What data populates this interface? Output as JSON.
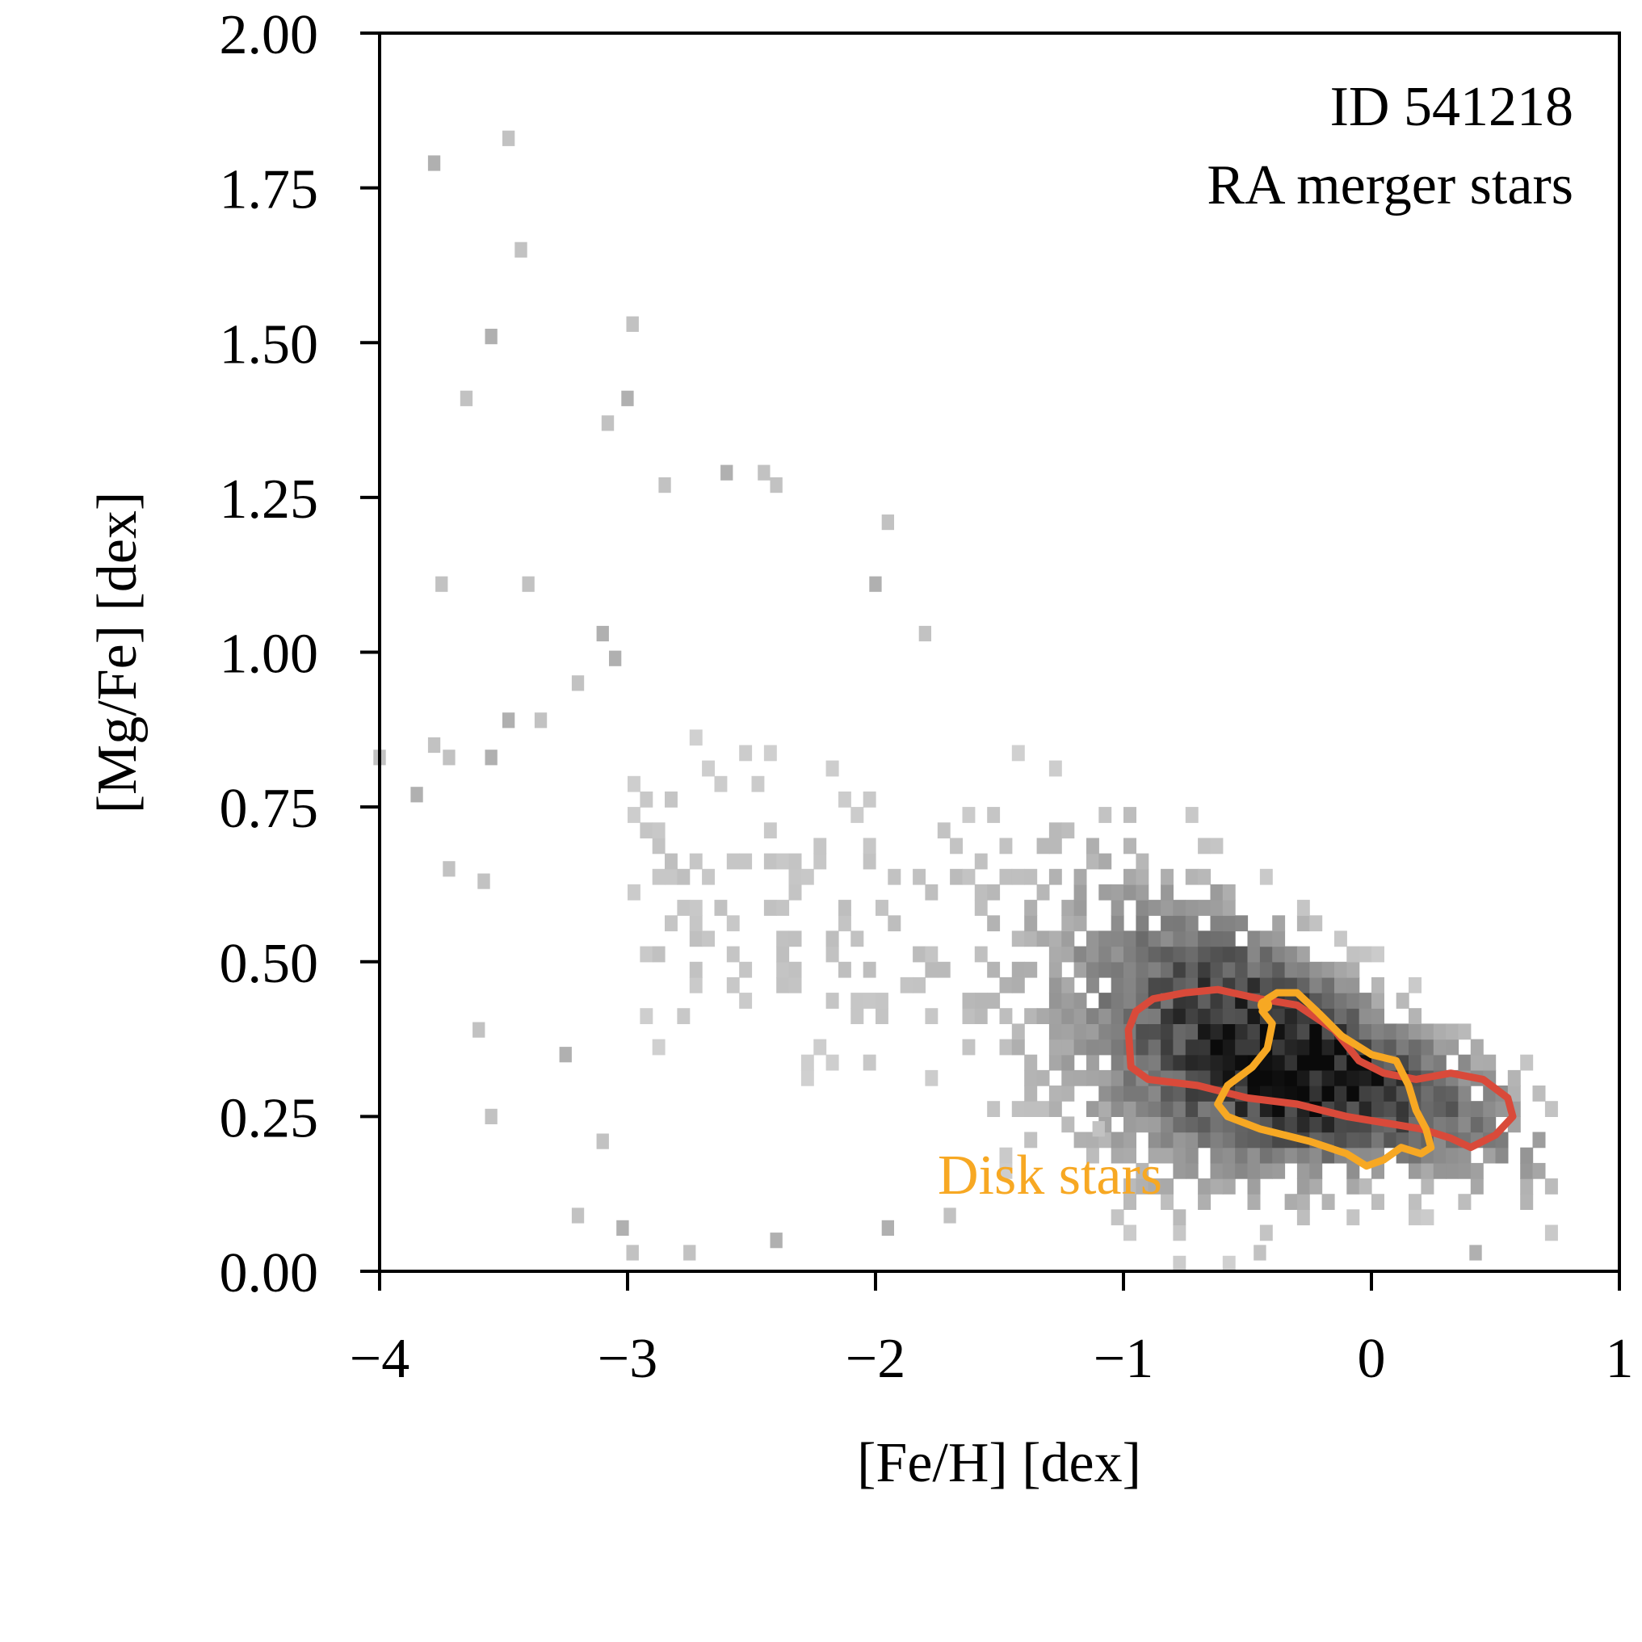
{
  "chart_data": {
    "type": "heatmap",
    "title": "",
    "xlabel": "[Fe/H] [dex]",
    "ylabel": "[Mg/Fe] [dex]",
    "xlim": [
      -4,
      1
    ],
    "ylim": [
      0,
      2
    ],
    "x_ticks": [
      -4,
      -3,
      -2,
      -1,
      0,
      1
    ],
    "x_tick_labels": [
      "−4",
      "−3",
      "−2",
      "−1",
      "0",
      "1"
    ],
    "y_ticks": [
      0,
      0.25,
      0.5,
      0.75,
      1.0,
      1.25,
      1.5,
      1.75,
      2.0
    ],
    "y_tick_labels": [
      "0.00",
      "0.25",
      "0.50",
      "0.75",
      "1.00",
      "1.25",
      "1.50",
      "1.75",
      "2.00"
    ],
    "grid": false,
    "annotations": [
      {
        "text": "ID 541218",
        "color": "#000000",
        "position": "top-right"
      },
      {
        "text": "RA merger stars",
        "color": "#000000",
        "position": "top-right"
      },
      {
        "text": "Disk stars",
        "color": "#f7a823",
        "position": "lower-middle"
      }
    ],
    "density_colormap": "greys",
    "density_ridge": [
      [
        -3.0,
        0.62
      ],
      [
        -2.5,
        0.58
      ],
      [
        -2.0,
        0.55
      ],
      [
        -1.5,
        0.5
      ],
      [
        -1.0,
        0.42
      ],
      [
        -0.5,
        0.36
      ],
      [
        0.0,
        0.3
      ],
      [
        0.5,
        0.24
      ],
      [
        0.8,
        0.15
      ]
    ],
    "sparse_points": [
      [
        -3.78,
        1.79
      ],
      [
        -3.48,
        1.83
      ],
      [
        -3.43,
        1.65
      ],
      [
        -3.55,
        1.51
      ],
      [
        -2.98,
        1.53
      ],
      [
        -3.65,
        1.41
      ],
      [
        -3.0,
        1.41
      ],
      [
        -3.08,
        1.37
      ],
      [
        -4.0,
        0.83
      ],
      [
        -3.85,
        0.77
      ],
      [
        -3.72,
        0.83
      ],
      [
        -3.78,
        0.85
      ],
      [
        -3.55,
        0.83
      ],
      [
        -3.72,
        0.65
      ],
      [
        -3.58,
        0.63
      ],
      [
        -3.48,
        0.89
      ],
      [
        -3.35,
        0.89
      ],
      [
        -3.2,
        0.95
      ],
      [
        -3.05,
        0.99
      ],
      [
        -3.75,
        1.11
      ],
      [
        -3.4,
        1.11
      ],
      [
        -3.1,
        1.03
      ],
      [
        -3.55,
        0.25
      ],
      [
        -3.6,
        0.39
      ],
      [
        -3.25,
        0.35
      ],
      [
        -3.1,
        0.21
      ],
      [
        -3.2,
        0.09
      ],
      [
        -3.02,
        0.07
      ],
      [
        -2.98,
        0.03
      ],
      [
        -2.75,
        0.03
      ],
      [
        -2.4,
        0.05
      ],
      [
        -1.95,
        1.21
      ],
      [
        -2.85,
        1.27
      ],
      [
        -2.6,
        1.29
      ],
      [
        -2.45,
        1.29
      ],
      [
        -2.4,
        1.27
      ],
      [
        -2.0,
        1.11
      ],
      [
        -1.8,
        1.03
      ],
      [
        -1.1,
        0.23
      ],
      [
        -1.95,
        0.07
      ],
      [
        -1.7,
        0.09
      ],
      [
        -0.45,
        0.03
      ],
      [
        0.42,
        0.03
      ]
    ],
    "contours": [
      {
        "name": "RA merger stars",
        "color": "#d94a3a",
        "points": [
          [
            -0.97,
            0.33
          ],
          [
            -0.98,
            0.39
          ],
          [
            -0.95,
            0.42
          ],
          [
            -0.88,
            0.44
          ],
          [
            -0.75,
            0.45
          ],
          [
            -0.62,
            0.455
          ],
          [
            -0.45,
            0.44
          ],
          [
            -0.3,
            0.43
          ],
          [
            -0.15,
            0.39
          ],
          [
            -0.05,
            0.34
          ],
          [
            0.05,
            0.32
          ],
          [
            0.18,
            0.31
          ],
          [
            0.32,
            0.32
          ],
          [
            0.45,
            0.31
          ],
          [
            0.55,
            0.28
          ],
          [
            0.57,
            0.25
          ],
          [
            0.5,
            0.22
          ],
          [
            0.4,
            0.2
          ],
          [
            0.32,
            0.215
          ],
          [
            0.2,
            0.23
          ],
          [
            0.05,
            0.24
          ],
          [
            -0.1,
            0.25
          ],
          [
            -0.3,
            0.27
          ],
          [
            -0.5,
            0.28
          ],
          [
            -0.7,
            0.3
          ],
          [
            -0.9,
            0.31
          ]
        ]
      },
      {
        "name": "Disk stars",
        "color": "#f7a823",
        "points": [
          [
            -0.42,
            0.44
          ],
          [
            -0.38,
            0.45
          ],
          [
            -0.3,
            0.45
          ],
          [
            -0.22,
            0.42
          ],
          [
            -0.12,
            0.38
          ],
          [
            0.0,
            0.35
          ],
          [
            0.1,
            0.34
          ],
          [
            0.15,
            0.3
          ],
          [
            0.18,
            0.26
          ],
          [
            0.22,
            0.23
          ],
          [
            0.24,
            0.2
          ],
          [
            0.2,
            0.19
          ],
          [
            0.12,
            0.2
          ],
          [
            0.05,
            0.18
          ],
          [
            -0.02,
            0.17
          ],
          [
            -0.1,
            0.19
          ],
          [
            -0.25,
            0.21
          ],
          [
            -0.45,
            0.23
          ],
          [
            -0.58,
            0.25
          ],
          [
            -0.62,
            0.27
          ],
          [
            -0.58,
            0.3
          ],
          [
            -0.48,
            0.33
          ],
          [
            -0.42,
            0.36
          ],
          [
            -0.4,
            0.4
          ],
          [
            -0.44,
            0.42
          ]
        ]
      }
    ]
  }
}
